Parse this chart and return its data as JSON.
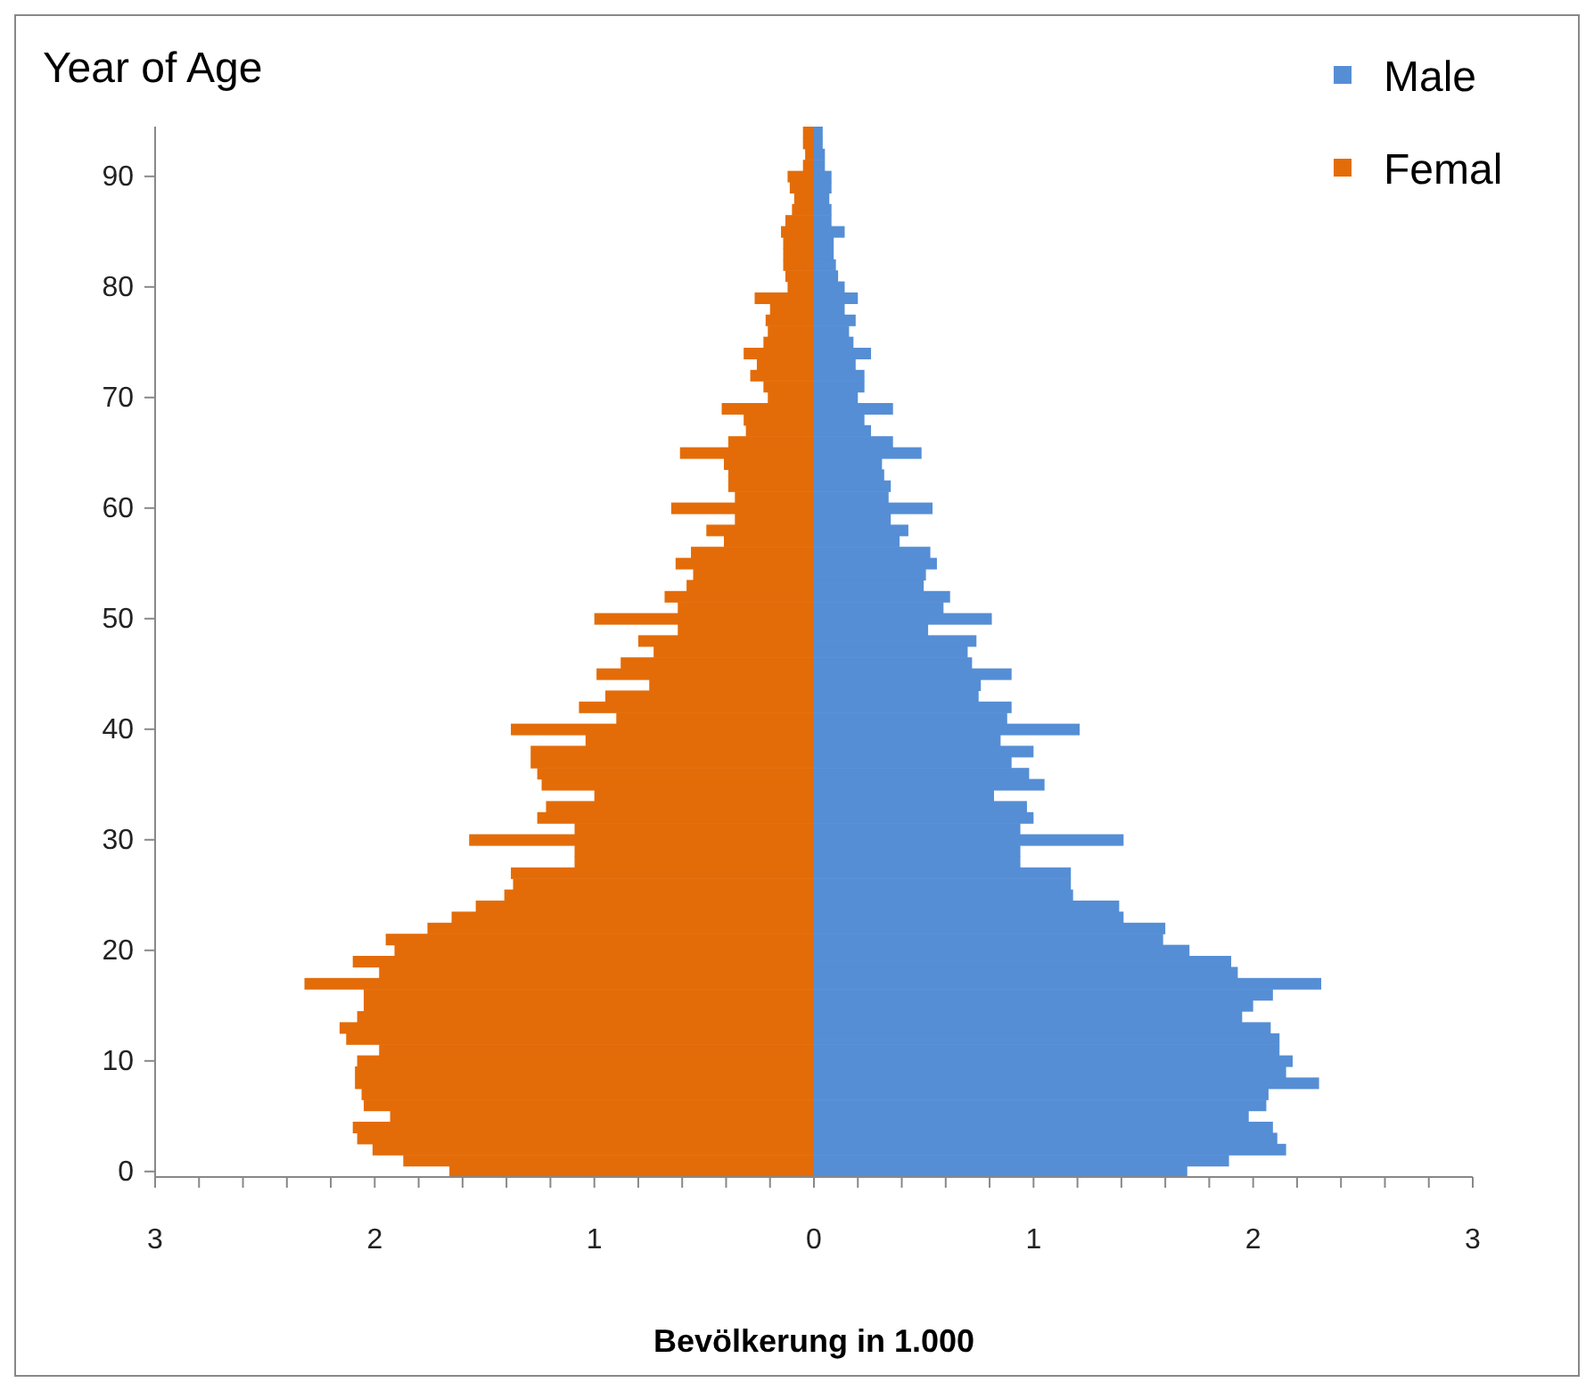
{
  "chart_data": {
    "type": "bar",
    "orientation": "horizontal",
    "stacked": true,
    "ylabel": "Year of Age",
    "xlabel": "Bevölkerung in 1.000",
    "categories": [
      null,
      null,
      null,
      null,
      "90",
      null,
      null,
      null,
      null,
      null,
      null,
      null,
      null,
      null,
      "80",
      null,
      null,
      null,
      null,
      null,
      null,
      null,
      null,
      null,
      "70",
      null,
      null,
      null,
      null,
      null,
      null,
      null,
      null,
      null,
      "60",
      null,
      null,
      null,
      null,
      null,
      null,
      null,
      null,
      null,
      "50",
      null,
      null,
      null,
      null,
      null,
      null,
      null,
      null,
      null,
      "40",
      null,
      null,
      null,
      null,
      null,
      null,
      null,
      null,
      null,
      "30",
      null,
      null,
      null,
      null,
      null,
      null,
      null,
      null,
      null,
      "20",
      null,
      null,
      null,
      null,
      null,
      null,
      null,
      null,
      null,
      "10",
      null,
      null,
      null,
      null,
      null,
      null,
      null,
      null,
      null,
      "0"
    ],
    "series": [
      {
        "name": "Male",
        "color": "#558ed5",
        "values": [
          0.04,
          0.04,
          0.05,
          0.05,
          0.08,
          0.08,
          0.07,
          0.08,
          0.08,
          0.14,
          0.09,
          0.09,
          0.1,
          0.11,
          0.14,
          0.2,
          0.14,
          0.19,
          0.16,
          0.18,
          0.26,
          0.19,
          0.23,
          0.23,
          0.2,
          0.36,
          0.23,
          0.26,
          0.36,
          0.49,
          0.31,
          0.32,
          0.35,
          0.34,
          0.54,
          0.35,
          0.43,
          0.39,
          0.53,
          0.56,
          0.51,
          0.5,
          0.62,
          0.59,
          0.81,
          0.52,
          0.74,
          0.7,
          0.72,
          0.9,
          0.76,
          0.75,
          0.9,
          0.88,
          1.21,
          0.85,
          1.0,
          0.9,
          0.98,
          1.05,
          0.82,
          0.97,
          1.0,
          0.94,
          1.41,
          0.94,
          0.94,
          1.17,
          1.17,
          1.18,
          1.39,
          1.41,
          1.6,
          1.59,
          1.71,
          1.9,
          1.93,
          2.31,
          2.09,
          2.0,
          1.95,
          2.08,
          2.12,
          2.12,
          2.18,
          2.15,
          2.3,
          2.07,
          2.06,
          1.98,
          2.09,
          2.11,
          2.15,
          1.89,
          1.7
        ]
      },
      {
        "name": "Femal",
        "color": "#e36c09",
        "values": [
          -0.05,
          -0.05,
          -0.04,
          -0.05,
          -0.12,
          -0.11,
          -0.09,
          -0.1,
          -0.13,
          -0.15,
          -0.14,
          -0.14,
          -0.14,
          -0.13,
          -0.12,
          -0.27,
          -0.2,
          -0.22,
          -0.21,
          -0.23,
          -0.32,
          -0.26,
          -0.29,
          -0.23,
          -0.21,
          -0.42,
          -0.32,
          -0.31,
          -0.39,
          -0.61,
          -0.41,
          -0.39,
          -0.39,
          -0.36,
          -0.65,
          -0.36,
          -0.49,
          -0.41,
          -0.56,
          -0.63,
          -0.55,
          -0.58,
          -0.68,
          -0.62,
          -1.0,
          -0.62,
          -0.8,
          -0.73,
          -0.88,
          -0.99,
          -0.75,
          -0.95,
          -1.07,
          -0.9,
          -1.38,
          -1.04,
          -1.29,
          -1.29,
          -1.26,
          -1.24,
          -1.0,
          -1.22,
          -1.26,
          -1.09,
          -1.57,
          -1.09,
          -1.09,
          -1.38,
          -1.37,
          -1.41,
          -1.54,
          -1.65,
          -1.76,
          -1.95,
          -1.91,
          -2.1,
          -1.98,
          -2.32,
          -2.05,
          -2.05,
          -2.08,
          -2.16,
          -2.13,
          -1.98,
          -2.08,
          -2.09,
          -2.09,
          -2.06,
          -2.05,
          -1.93,
          -2.1,
          -2.08,
          -2.01,
          -1.87,
          -1.66
        ]
      }
    ],
    "xlim": [
      -3,
      3
    ],
    "xticks": [
      {
        "value": -3,
        "label": "3"
      },
      {
        "value": -2.8,
        "label": null
      },
      {
        "value": -2.6,
        "label": null
      },
      {
        "value": -2.4,
        "label": null
      },
      {
        "value": -2.2,
        "label": null
      },
      {
        "value": -2,
        "label": "2"
      },
      {
        "value": -1.8,
        "label": null
      },
      {
        "value": -1.6,
        "label": null
      },
      {
        "value": -1.4,
        "label": null
      },
      {
        "value": -1.2,
        "label": null
      },
      {
        "value": -1,
        "label": "1"
      },
      {
        "value": -0.8,
        "label": null
      },
      {
        "value": -0.6,
        "label": null
      },
      {
        "value": -0.4,
        "label": null
      },
      {
        "value": -0.2,
        "label": null
      },
      0,
      {
        "value": 0.2,
        "label": null
      },
      {
        "value": 0.4,
        "label": null
      },
      {
        "value": 0.6,
        "label": null
      },
      {
        "value": 0.8,
        "label": null
      },
      1,
      {
        "value": 1.2,
        "label": null
      },
      {
        "value": 1.4,
        "label": null
      },
      {
        "value": 1.6,
        "label": null
      },
      {
        "value": 1.8,
        "label": null
      },
      2,
      {
        "value": 2.2,
        "label": null
      },
      {
        "value": 2.4,
        "label": null
      },
      {
        "value": 2.6,
        "label": null
      },
      {
        "value": 2.8,
        "label": null
      },
      3
    ],
    "legend": "top right",
    "grid": false
  }
}
